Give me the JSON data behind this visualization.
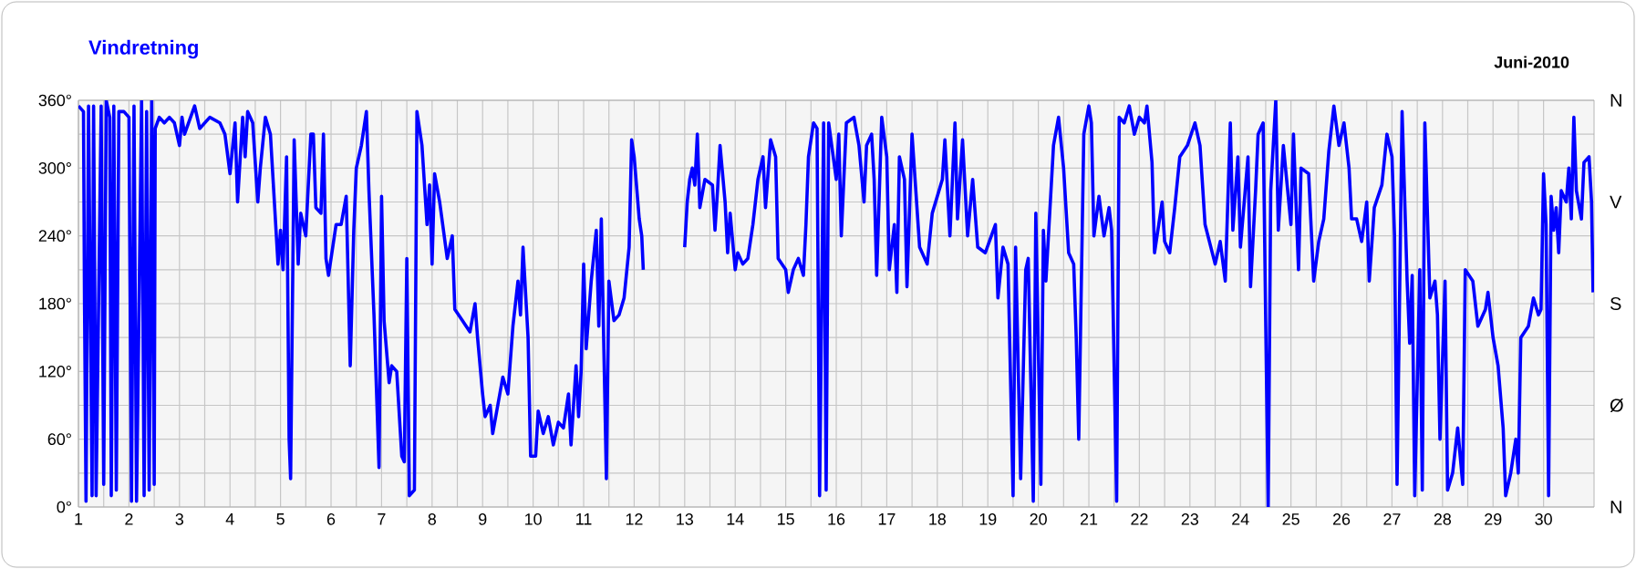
{
  "chart_data": {
    "type": "line",
    "title": "Vindretning",
    "subtitle": "Juni-2010",
    "xlim": [
      1,
      31
    ],
    "xticks": [
      1,
      2,
      3,
      4,
      5,
      6,
      7,
      8,
      9,
      10,
      11,
      12,
      13,
      14,
      15,
      16,
      17,
      18,
      19,
      20,
      21,
      22,
      23,
      24,
      25,
      26,
      27,
      28,
      29,
      30
    ],
    "ylim": [
      0,
      360
    ],
    "yticks": [
      {
        "value": 0,
        "label": "0°"
      },
      {
        "value": 60,
        "label": "60°"
      },
      {
        "value": 120,
        "label": "120°"
      },
      {
        "value": 180,
        "label": "180°"
      },
      {
        "value": 240,
        "label": "240°"
      },
      {
        "value": 300,
        "label": "300°"
      },
      {
        "value": 360,
        "label": "360°"
      }
    ],
    "annotations": [
      "N",
      "Ø",
      "S",
      "V",
      "N"
    ],
    "grid": true,
    "marker": "none",
    "line_style": "solid",
    "series": [
      {
        "color": "#0000ff",
        "x": [
          1.0,
          1.1,
          1.12,
          1.15,
          1.2,
          1.27,
          1.3,
          1.35,
          1.45,
          1.5,
          1.55,
          1.62,
          1.65,
          1.7,
          1.75,
          1.8,
          1.9,
          2.0,
          2.05,
          2.1,
          2.15,
          2.2,
          2.25,
          2.3,
          2.35,
          2.4,
          2.45,
          2.5,
          2.52,
          2.6,
          2.7,
          2.8,
          2.9,
          3.0,
          3.05,
          3.1,
          3.3,
          3.4,
          3.6,
          3.8,
          3.9,
          4.0,
          4.1,
          4.15,
          4.25,
          4.3,
          4.35,
          4.45,
          4.55,
          4.6,
          4.7,
          4.8,
          4.95,
          5.0,
          5.05,
          5.12,
          5.17,
          5.2,
          5.27,
          5.35,
          5.4,
          5.5,
          5.6,
          5.65,
          5.7,
          5.8,
          5.85,
          5.9,
          5.95,
          6.1,
          6.2,
          6.3,
          6.38,
          6.45,
          6.5,
          6.6,
          6.7,
          6.75,
          6.85,
          6.95,
          7.0,
          7.05,
          7.15,
          7.2,
          7.3,
          7.4,
          7.45,
          7.5,
          7.55,
          7.65,
          7.7,
          7.8,
          7.9,
          7.95,
          8.0,
          8.05,
          8.15,
          8.3,
          8.4,
          8.45,
          8.6,
          8.75,
          8.85,
          8.9,
          9.0,
          9.05,
          9.15,
          9.2,
          9.3,
          9.4,
          9.5,
          9.6,
          9.7,
          9.75,
          9.8,
          9.9,
          9.95,
          10.05,
          10.1,
          10.2,
          10.3,
          10.4,
          10.5,
          10.6,
          10.7,
          10.75,
          10.85,
          10.9,
          10.95,
          11.0,
          11.05,
          11.15,
          11.25,
          11.3,
          11.35,
          11.45,
          11.5,
          11.6,
          11.7,
          11.8,
          11.9,
          11.95,
          12.0,
          12.1,
          12.15,
          12.18,
          12.5,
          13.0,
          13.05,
          13.1,
          13.15,
          13.2,
          13.25,
          13.3,
          13.4,
          13.55,
          13.6,
          13.65,
          13.7,
          13.8,
          13.85,
          13.9,
          14.0,
          14.05,
          14.15,
          14.25,
          14.35,
          14.45,
          14.55,
          14.6,
          14.7,
          14.8,
          14.85,
          15.0,
          15.05,
          15.15,
          15.25,
          15.35,
          15.4,
          15.45,
          15.55,
          15.62,
          15.67,
          15.75,
          15.8,
          15.85,
          16.0,
          16.05,
          16.1,
          16.2,
          16.35,
          16.45,
          16.55,
          16.6,
          16.7,
          16.75,
          16.8,
          16.9,
          17.0,
          17.05,
          17.15,
          17.2,
          17.25,
          17.35,
          17.4,
          17.5,
          17.65,
          17.8,
          17.9,
          18.1,
          18.15,
          18.25,
          18.35,
          18.4,
          18.5,
          18.6,
          18.7,
          18.8,
          18.95,
          19.15,
          19.2,
          19.3,
          19.4,
          19.5,
          19.55,
          19.65,
          19.75,
          19.8,
          19.9,
          19.95,
          20.05,
          20.1,
          20.15,
          20.3,
          20.4,
          20.5,
          20.6,
          20.7,
          20.75,
          20.8,
          20.9,
          21.0,
          21.05,
          21.1,
          21.2,
          21.3,
          21.4,
          21.45,
          21.55,
          21.6,
          21.7,
          21.8,
          21.9,
          22.0,
          22.1,
          22.15,
          22.25,
          22.3,
          22.45,
          22.5,
          22.6,
          22.7,
          22.8,
          22.95,
          23.1,
          23.2,
          23.3,
          23.5,
          23.6,
          23.7,
          23.8,
          23.85,
          23.95,
          24.0,
          24.15,
          24.2,
          24.3,
          24.35,
          24.45,
          24.5,
          24.55,
          24.6,
          24.7,
          24.75,
          24.85,
          25.0,
          25.05,
          25.15,
          25.2,
          25.35,
          25.45,
          25.55,
          25.65,
          25.75,
          25.85,
          25.95,
          26.05,
          26.15,
          26.2,
          26.3,
          26.4,
          26.5,
          26.55,
          26.65,
          26.8,
          26.9,
          27.0,
          27.05,
          27.1,
          27.2,
          27.3,
          27.35,
          27.4,
          27.45,
          27.55,
          27.6,
          27.65,
          27.75,
          27.85,
          27.9,
          27.95,
          28.05,
          28.1,
          28.2,
          28.3,
          28.4,
          28.45,
          28.6,
          28.7,
          28.85,
          28.9,
          29.0,
          29.1,
          29.2,
          29.25,
          29.35,
          29.45,
          29.5,
          29.55,
          29.7,
          29.8,
          29.9,
          29.95,
          30.0,
          30.05,
          30.1,
          30.15,
          30.2,
          30.25,
          30.3,
          30.35,
          30.45,
          30.5,
          30.55,
          30.6,
          30.65,
          30.75,
          30.8,
          30.9,
          30.95,
          30.98
        ],
        "values": [
          355,
          350,
          180,
          5,
          355,
          10,
          355,
          10,
          355,
          20,
          360,
          345,
          10,
          355,
          15,
          350,
          350,
          345,
          5,
          355,
          5,
          180,
          360,
          10,
          350,
          15,
          360,
          20,
          335,
          345,
          340,
          345,
          340,
          320,
          345,
          330,
          355,
          335,
          345,
          340,
          330,
          295,
          340,
          270,
          345,
          310,
          350,
          340,
          270,
          300,
          345,
          330,
          215,
          245,
          210,
          310,
          60,
          25,
          325,
          215,
          260,
          240,
          330,
          330,
          265,
          260,
          330,
          220,
          205,
          250,
          250,
          275,
          125,
          245,
          300,
          320,
          350,
          280,
          170,
          35,
          275,
          165,
          110,
          125,
          120,
          45,
          40,
          220,
          10,
          15,
          350,
          320,
          250,
          285,
          215,
          295,
          270,
          220,
          240,
          175,
          165,
          155,
          180,
          150,
          100,
          80,
          90,
          65,
          90,
          115,
          100,
          160,
          200,
          170,
          230,
          150,
          45,
          45,
          85,
          65,
          80,
          55,
          75,
          70,
          100,
          55,
          125,
          80,
          120,
          215,
          140,
          200,
          245,
          160,
          255,
          25,
          200,
          165,
          170,
          185,
          230,
          325,
          310,
          255,
          240,
          210,
          null,
          230,
          270,
          290,
          300,
          285,
          330,
          265,
          290,
          285,
          245,
          280,
          320,
          270,
          225,
          260,
          210,
          225,
          215,
          220,
          250,
          290,
          310,
          265,
          325,
          310,
          220,
          210,
          190,
          210,
          220,
          205,
          250,
          310,
          340,
          335,
          10,
          340,
          15,
          340,
          290,
          330,
          240,
          340,
          345,
          320,
          270,
          320,
          330,
          290,
          205,
          345,
          310,
          210,
          250,
          190,
          310,
          290,
          195,
          330,
          230,
          215,
          260,
          290,
          325,
          240,
          340,
          255,
          325,
          240,
          290,
          230,
          225,
          250,
          185,
          230,
          215,
          10,
          230,
          25,
          210,
          220,
          5,
          260,
          20,
          245,
          200,
          320,
          345,
          300,
          225,
          215,
          150,
          60,
          330,
          355,
          340,
          240,
          275,
          240,
          265,
          245,
          5,
          345,
          340,
          355,
          330,
          345,
          340,
          355,
          305,
          225,
          270,
          235,
          225,
          265,
          310,
          320,
          340,
          320,
          250,
          215,
          235,
          200,
          340,
          245,
          310,
          230,
          310,
          195,
          280,
          330,
          340,
          165,
          0,
          280,
          360,
          245,
          320,
          250,
          330,
          210,
          300,
          295,
          200,
          235,
          255,
          315,
          355,
          320,
          340,
          300,
          255,
          255,
          235,
          270,
          200,
          265,
          285,
          330,
          310,
          240,
          20,
          350,
          200,
          145,
          205,
          10,
          210,
          15,
          340,
          185,
          200,
          170,
          60,
          200,
          15,
          30,
          70,
          20,
          210,
          200,
          160,
          175,
          190,
          150,
          125,
          70,
          10,
          30,
          60,
          30,
          150,
          160,
          185,
          170,
          175,
          295,
          250,
          10,
          275,
          245,
          265,
          225,
          280,
          270,
          300,
          255,
          345,
          280,
          255,
          305,
          310,
          270,
          190
        ]
      }
    ]
  }
}
